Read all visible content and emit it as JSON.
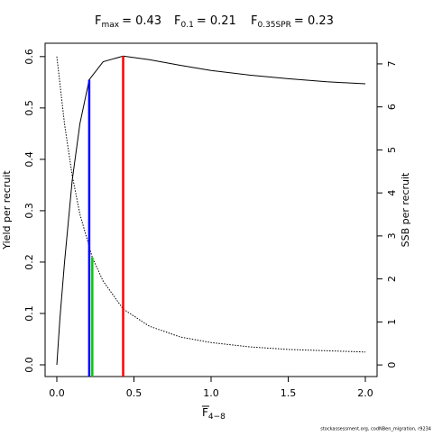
{
  "chart_data": {
    "type": "line",
    "reference_lines": [
      {
        "symbol": "F",
        "subscript": "max",
        "label": "= 0.43",
        "value": 0.43,
        "top": 0.601,
        "axis": "y",
        "color": "#ff0000"
      },
      {
        "symbol": "F",
        "subscript": "0.1",
        "label": "= 0.21",
        "value": 0.21,
        "top": 0.555,
        "axis": "y",
        "color": "#0000ff"
      },
      {
        "symbol": "F",
        "subscript": "0.35SPR",
        "label": "= 0.23",
        "value": 0.23,
        "top": 2.5,
        "axis": "y2",
        "color": "#00cc00"
      }
    ],
    "xlabel": "F",
    "xlabel_sub": "4−8",
    "ylabel": "Yield per recruit",
    "y2label": "SSB per recruit",
    "footer": "stockassessment.org, codNBen_migration, r9234",
    "series": [
      {
        "name": "Yield per recruit",
        "color": "#000000",
        "dash": "solid",
        "x": [
          0,
          0.02,
          0.05,
          0.1,
          0.15,
          0.21,
          0.3,
          0.43,
          0.6,
          0.8,
          1.0,
          1.25,
          1.5,
          1.75,
          2.0
        ],
        "values": [
          0,
          0.09,
          0.2,
          0.36,
          0.47,
          0.555,
          0.59,
          0.601,
          0.594,
          0.583,
          0.573,
          0.564,
          0.557,
          0.551,
          0.547
        ]
      },
      {
        "name": "SSB per recruit",
        "color": "#000000",
        "dash": "dotted",
        "axis": "y2",
        "x": [
          0,
          0.05,
          0.1,
          0.15,
          0.23,
          0.3,
          0.43,
          0.6,
          0.8,
          1.0,
          1.25,
          1.5,
          1.75,
          2.0
        ],
        "values": [
          7.17,
          5.6,
          4.4,
          3.5,
          2.5,
          1.95,
          1.3,
          0.9,
          0.65,
          0.52,
          0.42,
          0.36,
          0.33,
          0.3
        ]
      }
    ],
    "xlim": [
      -0.076,
      2.076
    ],
    "xticks": [
      {
        "value": 0,
        "label": "0.0"
      },
      {
        "value": 0.5,
        "label": "0.5"
      },
      {
        "value": 1,
        "label": "1.0"
      },
      {
        "value": 1.5,
        "label": "1.5"
      },
      {
        "value": 2,
        "label": "2.0"
      }
    ],
    "ylim": [
      -0.0228,
      0.626
    ],
    "yticks": [
      {
        "value": 0,
        "label": "0.0"
      },
      0.1,
      0.2,
      0.3,
      0.4,
      0.5,
      0.6
    ],
    "y2lim": [
      -0.27,
      7.48
    ],
    "y2ticks": [
      0,
      1,
      2,
      3,
      4,
      5,
      6,
      7
    ]
  }
}
